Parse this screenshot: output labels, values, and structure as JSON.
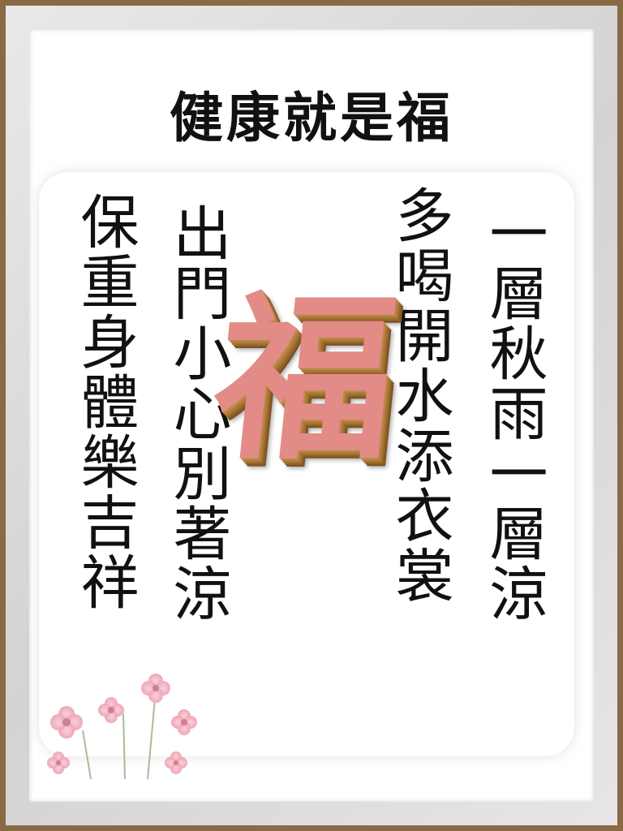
{
  "title": "健康就是福",
  "columns": {
    "col1": "一層秋雨一層涼",
    "col2": "多喝開水添衣裳",
    "col3": "出門小心別著涼",
    "col4": "保重身體樂吉祥"
  },
  "center_character": "福",
  "colors": {
    "frame": "#8a6a45",
    "center_character": "#e38b86",
    "flowers": "#f2a3b4"
  }
}
